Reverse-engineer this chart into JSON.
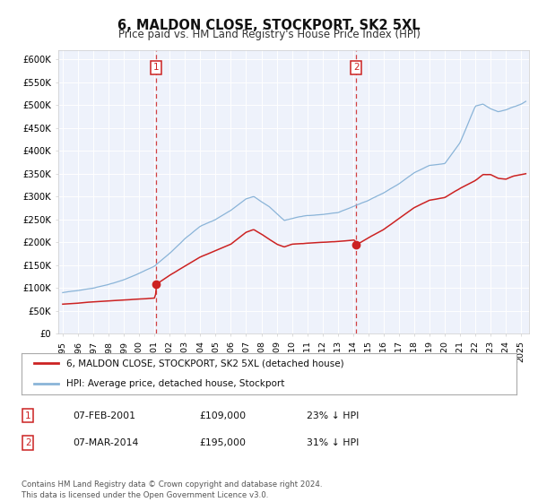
{
  "title": "6, MALDON CLOSE, STOCKPORT, SK2 5XL",
  "subtitle": "Price paid vs. HM Land Registry's House Price Index (HPI)",
  "title_fontsize": 10.5,
  "subtitle_fontsize": 8.5,
  "background_color": "#ffffff",
  "plot_bg_color": "#eef2fb",
  "grid_color": "#ffffff",
  "ylim": [
    0,
    620000
  ],
  "xlim_start": 1994.7,
  "xlim_end": 2025.5,
  "yticks": [
    0,
    50000,
    100000,
    150000,
    200000,
    250000,
    300000,
    350000,
    400000,
    450000,
    500000,
    550000,
    600000
  ],
  "ytick_labels": [
    "£0",
    "£50K",
    "£100K",
    "£150K",
    "£200K",
    "£250K",
    "£300K",
    "£350K",
    "£400K",
    "£450K",
    "£500K",
    "£550K",
    "£600K"
  ],
  "hpi_color": "#8ab4d8",
  "price_color": "#cc2222",
  "marker_color": "#cc2222",
  "vline_color": "#cc2222",
  "marker1_x": 2001.1,
  "marker1_y": 109000,
  "marker2_x": 2014.2,
  "marker2_y": 195000,
  "legend_label_price": "6, MALDON CLOSE, STOCKPORT, SK2 5XL (detached house)",
  "legend_label_hpi": "HPI: Average price, detached house, Stockport",
  "table_row1": [
    "1",
    "07-FEB-2001",
    "£109,000",
    "23% ↓ HPI"
  ],
  "table_row2": [
    "2",
    "07-MAR-2014",
    "£195,000",
    "31% ↓ HPI"
  ],
  "footer_text": "Contains HM Land Registry data © Crown copyright and database right 2024.\nThis data is licensed under the Open Government Licence v3.0.",
  "xtick_years": [
    1995,
    1996,
    1997,
    1998,
    1999,
    2000,
    2001,
    2002,
    2003,
    2004,
    2005,
    2006,
    2007,
    2008,
    2009,
    2010,
    2011,
    2012,
    2013,
    2014,
    2015,
    2016,
    2017,
    2018,
    2019,
    2020,
    2021,
    2022,
    2023,
    2024,
    2025
  ]
}
